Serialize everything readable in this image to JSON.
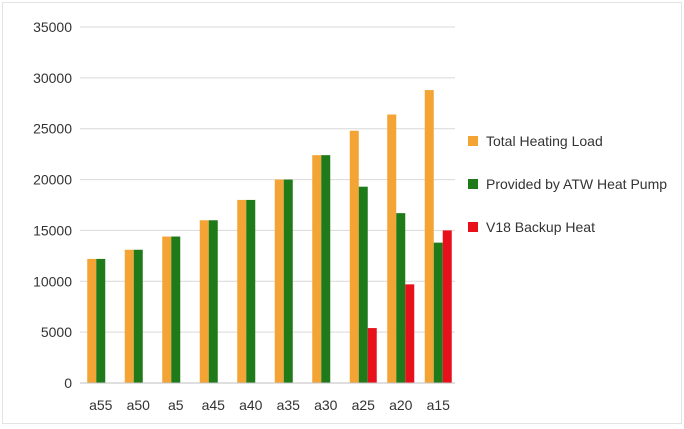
{
  "chart_data": {
    "type": "bar",
    "categories": [
      "a55",
      "a50",
      "a5",
      "a45",
      "a40",
      "a35",
      "a30",
      "a25",
      "a20",
      "a15"
    ],
    "series": [
      {
        "name": "Total Heating Load",
        "color": "#f4a434",
        "values": [
          12200,
          13100,
          14400,
          16000,
          18000,
          20000,
          22400,
          24800,
          26400,
          28800
        ]
      },
      {
        "name": "Provided by ATW Heat Pump",
        "color": "#1f7a1a",
        "values": [
          12200,
          13100,
          14400,
          16000,
          18000,
          20000,
          22400,
          19300,
          16700,
          13800
        ]
      },
      {
        "name": "V18 Backup Heat",
        "color": "#e8111b",
        "values": [
          0,
          0,
          0,
          0,
          0,
          0,
          0,
          5400,
          9700,
          15000
        ]
      }
    ],
    "title": "",
    "xlabel": "",
    "ylabel": "",
    "ylim": [
      0,
      35000
    ],
    "yticks": [
      "0",
      "5000",
      "10000",
      "15000",
      "20000",
      "25000",
      "30000",
      "35000"
    ],
    "grid": true,
    "legend_position": "right"
  }
}
